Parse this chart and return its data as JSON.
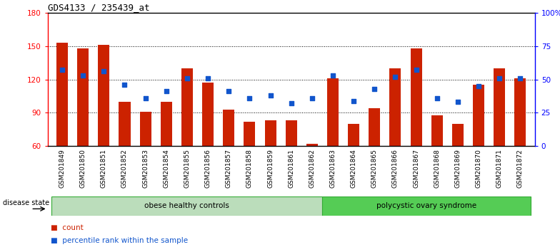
{
  "title": "GDS4133 / 235439_at",
  "samples": [
    "GSM201849",
    "GSM201850",
    "GSM201851",
    "GSM201852",
    "GSM201853",
    "GSM201854",
    "GSM201855",
    "GSM201856",
    "GSM201857",
    "GSM201858",
    "GSM201859",
    "GSM201861",
    "GSM201862",
    "GSM201863",
    "GSM201864",
    "GSM201865",
    "GSM201866",
    "GSM201867",
    "GSM201868",
    "GSM201869",
    "GSM201870",
    "GSM201871",
    "GSM201872"
  ],
  "counts": [
    153,
    148,
    151,
    100,
    91,
    100,
    130,
    117,
    93,
    82,
    83,
    83,
    62,
    121,
    80,
    94,
    130,
    148,
    88,
    80,
    115,
    130,
    121
  ],
  "percentiles": [
    57,
    53,
    56,
    46,
    36,
    41,
    51,
    51,
    41,
    36,
    38,
    32,
    36,
    53,
    34,
    43,
    52,
    57,
    36,
    33,
    45,
    51,
    51
  ],
  "bar_color": "#cc2200",
  "dot_color": "#1155cc",
  "ymin": 60,
  "ymax": 180,
  "yticks_left": [
    60,
    90,
    120,
    150,
    180
  ],
  "yticks_right": [
    0,
    25,
    50,
    75,
    100
  ],
  "yticks_right_labels": [
    "0",
    "25",
    "50",
    "75",
    "100%"
  ],
  "gridlines": [
    90,
    120,
    150
  ],
  "group1_label": "obese healthy controls",
  "group2_label": "polycystic ovary syndrome",
  "group1_count": 13,
  "legend_count_label": "count",
  "legend_pct_label": "percentile rank within the sample",
  "disease_state_label": "disease state",
  "group1_color": "#bbddbb",
  "group2_color": "#55cc55",
  "group_border_color": "#33aa33"
}
